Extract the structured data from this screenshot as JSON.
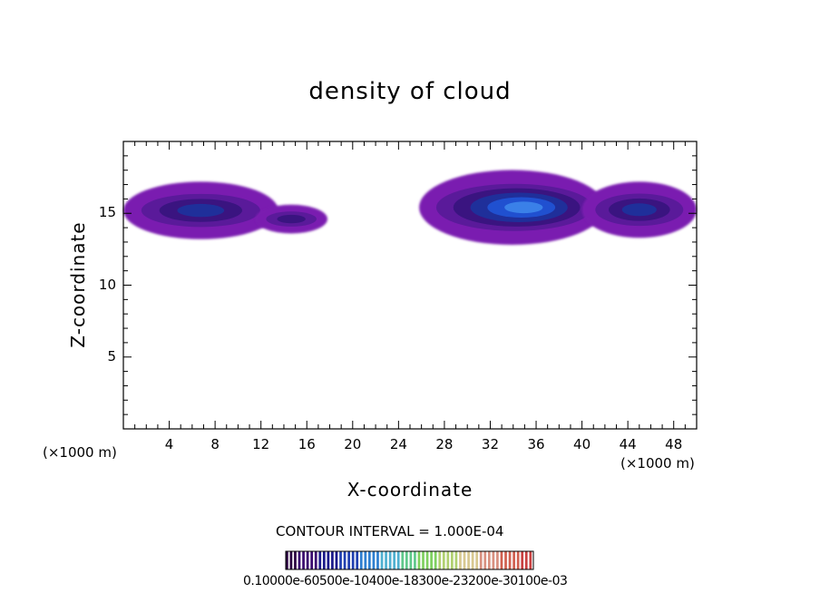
{
  "chart_data": {
    "type": "heatmap",
    "title": "density of cloud",
    "xlabel": "X-coordinate",
    "ylabel": "Z-coordinate",
    "x_unit_label": "(×1000 m)",
    "xlim": [
      0,
      50
    ],
    "ylim": [
      0,
      20
    ],
    "x_ticks": [
      4,
      8,
      12,
      16,
      20,
      24,
      28,
      32,
      36,
      40,
      44,
      48
    ],
    "y_ticks": [
      5,
      10,
      15
    ],
    "contour_interval_text": "CONTOUR INTERVAL = 1.000E-04",
    "colorbar_labels_text": "0.10000e-60500e-10400e-18300e-23200e-30100e-03",
    "colorbar_colors": [
      "#2a0040",
      "#3a0a6e",
      "#1a1a8a",
      "#1f3fb0",
      "#2f7fd0",
      "#4fb0d0",
      "#5fc88a",
      "#7fd060",
      "#b0d070",
      "#d8c890",
      "#d89080",
      "#d06050",
      "#c84040"
    ],
    "cloud_regions": [
      {
        "x_range": [
          0,
          13.5
        ],
        "z_range": [
          13.2,
          17.2
        ],
        "max_density_level": 3
      },
      {
        "x_range": [
          11.5,
          17.8
        ],
        "z_range": [
          13.6,
          15.6
        ],
        "max_density_level": 2
      },
      {
        "x_range": [
          25.8,
          42
        ],
        "z_range": [
          13.2,
          18.4
        ],
        "max_density_level": 5
      },
      {
        "x_range": [
          40,
          50
        ],
        "z_range": [
          13.3,
          17.2
        ],
        "max_density_level": 3
      }
    ]
  }
}
